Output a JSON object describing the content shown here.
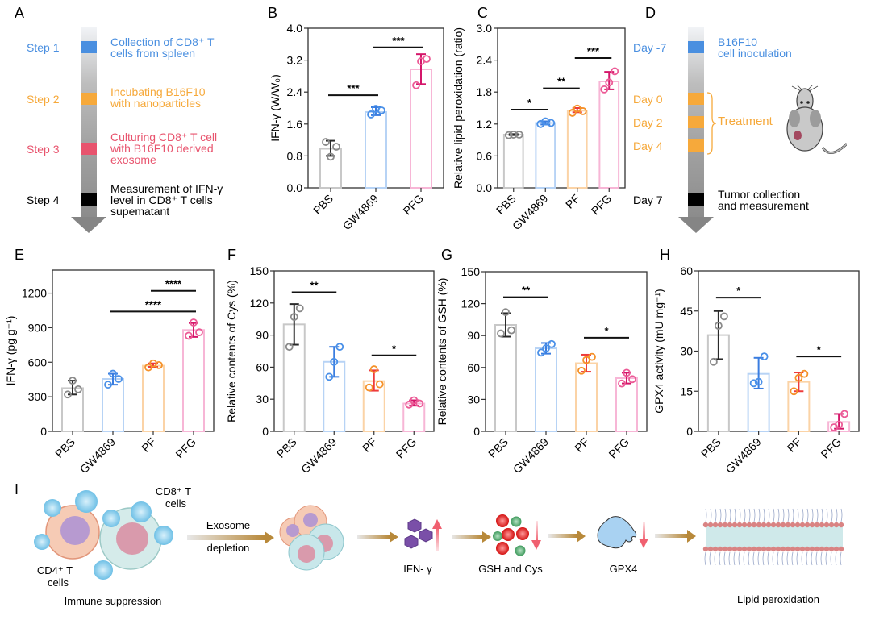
{
  "panels": {
    "A": {
      "letter": "A",
      "steps": [
        {
          "label": "Step 1",
          "desc1": "Collection of CD8⁺ T",
          "desc2": "cells from spleen",
          "desc3": "",
          "color": "#4a8fe0"
        },
        {
          "label": "Step 2",
          "desc1": "Incubating B16F10",
          "desc2": "with nanoparticles",
          "desc3": "",
          "color": "#f6a93b"
        },
        {
          "label": "Step 3",
          "desc1": "Culturing CD8⁺ T cell",
          "desc2": "with B16F10 derived",
          "desc3": "exosome",
          "color": "#e8546e"
        },
        {
          "label": "Step 4",
          "desc1": "Measurement of IFN-γ",
          "desc2": "level in CD8⁺ T cells",
          "desc3": "supematant",
          "color": "#000000"
        }
      ]
    },
    "D": {
      "letter": "D",
      "days": [
        {
          "label": "Day -7",
          "color": "#4a8fe0"
        },
        {
          "label": "Day 0",
          "color": "#f6a93b"
        },
        {
          "label": "Day 2",
          "color": "#f6a93b"
        },
        {
          "label": "Day 4",
          "color": "#f6a93b"
        },
        {
          "label": "Day 7",
          "color": "#000000"
        }
      ],
      "inoculation1": "B16F10",
      "inoculation2": "cell inoculation",
      "treatment": "Treatment",
      "collection1": "Tumor collection",
      "collection2": "and measurement",
      "mouse_icon": "mouse-icon"
    },
    "I": {
      "letter": "I",
      "cd8_label1": "CD8⁺ T",
      "cd8_label2": "cells",
      "cd4_label1": "CD4⁺ T",
      "cd4_label2": "cells",
      "immune": "Immune suppression",
      "exosome1": "Exosome",
      "exosome2": "depletion",
      "ifn": "IFN- γ",
      "gsh": "GSH and Cys",
      "gpx4": "GPX4",
      "lipid": "Lipid peroxidation"
    }
  },
  "colors": {
    "PBS": "#c8c8c8",
    "PBS_dark": "#2a2a2a",
    "PBS_pt": "#8a8a8a",
    "GW4869": "#b7d3f5",
    "GW4869_dark": "#3a7de0",
    "GW4869_pt": "#4a90e8",
    "PF": "#fbd3a6",
    "PF_dark": "#ee3b3b",
    "PF_pt": "#f5922a",
    "PFG": "#f7b6d6",
    "PFG_dark": "#d4166a",
    "PFG_pt": "#ec5a96"
  },
  "chart_data": [
    {
      "id": "B",
      "letter": "B",
      "type": "bar",
      "title": "",
      "xlabel": "",
      "ylabel": "IFN-γ (W/W₀)",
      "categories": [
        "PBS",
        "GW4869",
        "PFG"
      ],
      "values": [
        0.98,
        1.9,
        2.97
      ],
      "errors": [
        [
          0.8,
          1.18
        ],
        [
          1.82,
          2.02
        ],
        [
          2.6,
          3.35
        ]
      ],
      "points": [
        [
          1.15,
          0.78,
          1.03
        ],
        [
          1.84,
          1.98,
          1.94
        ],
        [
          2.57,
          3.17,
          3.23
        ]
      ],
      "ylim": [
        0,
        4.0
      ],
      "yticks": [
        "0.0",
        "0.8",
        "1.6",
        "2.4",
        "3.2",
        "4.0"
      ],
      "significance": [
        {
          "from": 0,
          "to": 1,
          "y": 2.32,
          "label": "***"
        },
        {
          "from": 1,
          "to": 2,
          "y": 3.52,
          "label": "***"
        }
      ]
    },
    {
      "id": "C",
      "letter": "C",
      "type": "bar",
      "title": "",
      "xlabel": "",
      "ylabel": "Relative lipid peroxidation (ratio)",
      "categories": [
        "PBS",
        "GW4869",
        "PF",
        "PFG"
      ],
      "values": [
        1.0,
        1.22,
        1.45,
        2.0
      ],
      "errors": [
        [
          0.99,
          1.01
        ],
        [
          1.19,
          1.25
        ],
        [
          1.42,
          1.5
        ],
        [
          1.85,
          2.18
        ]
      ],
      "points": [
        [
          0.99,
          1.0,
          1.0
        ],
        [
          1.2,
          1.25,
          1.22
        ],
        [
          1.41,
          1.49,
          1.44
        ],
        [
          1.85,
          1.98,
          2.19
        ]
      ],
      "ylim": [
        0,
        3.0
      ],
      "yticks": [
        "0.0",
        "0.6",
        "1.2",
        "1.8",
        "2.4",
        "3.0"
      ],
      "significance": [
        {
          "from": 0,
          "to": 1,
          "y": 1.47,
          "label": "*"
        },
        {
          "from": 1,
          "to": 2,
          "y": 1.87,
          "label": "**"
        },
        {
          "from": 2,
          "to": 3,
          "y": 2.44,
          "label": "***"
        }
      ]
    },
    {
      "id": "E",
      "letter": "E",
      "type": "bar",
      "title": "",
      "xlabel": "",
      "ylabel": "IFN-γ (pg g⁻¹)",
      "categories": [
        "PBS",
        "GW4869",
        "PF",
        "PFG"
      ],
      "values": [
        375,
        455,
        570,
        880
      ],
      "errors": [
        [
          320,
          440
        ],
        [
          405,
          500
        ],
        [
          560,
          590
        ],
        [
          820,
          940
        ]
      ],
      "points": [
        [
          320,
          440,
          365
        ],
        [
          405,
          500,
          455
        ],
        [
          555,
          590,
          575
        ],
        [
          830,
          945,
          860
        ]
      ],
      "ylim": [
        0,
        1400
      ],
      "yticks": [
        "0",
        "300",
        "600",
        "900",
        "1200"
      ],
      "significance": [
        {
          "from": 1,
          "to": 3,
          "y": 1040,
          "label": "****"
        },
        {
          "from": 2,
          "to": 3,
          "y": 1220,
          "label": "****"
        }
      ]
    },
    {
      "id": "F",
      "letter": "F",
      "type": "bar",
      "title": "",
      "xlabel": "",
      "ylabel": "Relative contents of Cys (%)",
      "categories": [
        "PBS",
        "GW4869",
        "PF",
        "PFG"
      ],
      "values": [
        100,
        65,
        47,
        26
      ],
      "errors": [
        [
          81,
          119
        ],
        [
          51,
          79
        ],
        [
          38,
          57
        ],
        [
          24,
          29
        ]
      ],
      "points": [
        [
          79,
          107,
          115
        ],
        [
          51,
          65,
          79
        ],
        [
          41,
          58,
          44
        ],
        [
          25,
          29,
          26
        ]
      ],
      "ylim": [
        0,
        150
      ],
      "yticks": [
        "0",
        "30",
        "60",
        "90",
        "120",
        "150"
      ],
      "significance": [
        {
          "from": 0,
          "to": 1,
          "y": 130,
          "label": "**"
        },
        {
          "from": 2,
          "to": 3,
          "y": 71,
          "label": "*"
        }
      ]
    },
    {
      "id": "G",
      "letter": "G",
      "type": "bar",
      "title": "",
      "xlabel": "",
      "ylabel": "Relative contents of GSH (%)",
      "categories": [
        "PBS",
        "GW4869",
        "PF",
        "PFG"
      ],
      "values": [
        100,
        78,
        64,
        50
      ],
      "errors": [
        [
          89,
          111
        ],
        [
          73,
          83
        ],
        [
          56,
          72
        ],
        [
          45,
          55
        ]
      ],
      "points": [
        [
          92,
          112,
          95
        ],
        [
          74,
          78,
          82
        ],
        [
          57,
          67,
          70
        ],
        [
          45,
          55,
          49
        ]
      ],
      "ylim": [
        0,
        150
      ],
      "yticks": [
        "0",
        "30",
        "60",
        "90",
        "120",
        "150"
      ],
      "significance": [
        {
          "from": 0,
          "to": 1,
          "y": 126,
          "label": "**"
        },
        {
          "from": 2,
          "to": 3,
          "y": 88,
          "label": "*"
        }
      ]
    },
    {
      "id": "H",
      "letter": "H",
      "type": "bar",
      "title": "",
      "xlabel": "",
      "ylabel": "GPX4 activity (mU mg⁻¹)",
      "categories": [
        "PBS",
        "GW4869",
        "PF",
        "PFG"
      ],
      "values": [
        36,
        21.5,
        18.5,
        3.5
      ],
      "errors": [
        [
          27,
          45
        ],
        [
          16,
          27.5
        ],
        [
          15,
          22
        ],
        [
          1,
          6.5
        ]
      ],
      "points": [
        [
          26,
          39.5,
          43
        ],
        [
          18,
          18.5,
          28
        ],
        [
          15,
          20,
          21.5
        ],
        [
          1.5,
          2.5,
          6.5
        ]
      ],
      "ylim": [
        0,
        60
      ],
      "yticks": [
        "0",
        "15",
        "30",
        "45",
        "60"
      ],
      "significance": [
        {
          "from": 0,
          "to": 1,
          "y": 50,
          "label": "*"
        },
        {
          "from": 2,
          "to": 3,
          "y": 28,
          "label": "*"
        }
      ]
    }
  ]
}
